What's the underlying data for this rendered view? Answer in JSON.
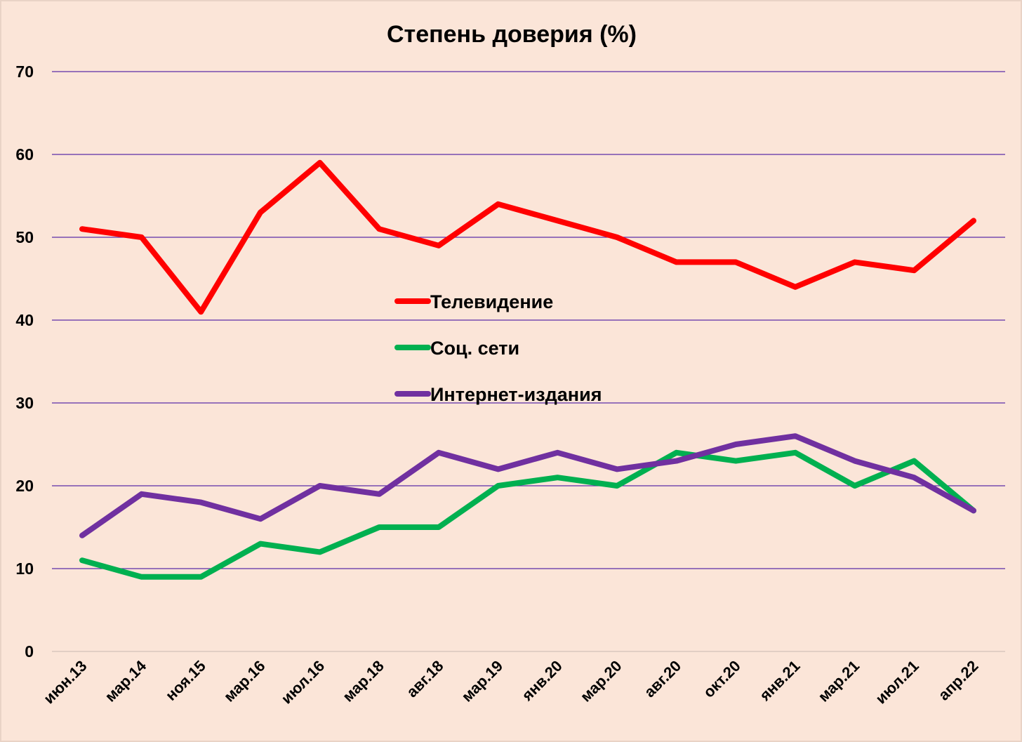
{
  "chart_data": {
    "type": "line",
    "title": "Степень доверия (%)",
    "xlabel": "",
    "ylabel": "",
    "ylim": [
      0,
      70
    ],
    "yticks": [
      0,
      10,
      20,
      30,
      40,
      50,
      60,
      70
    ],
    "grid": true,
    "legend_position": "center",
    "categories": [
      "июн.13",
      "мар.14",
      "ноя.15",
      "мар.16",
      "июл.16",
      "мар.18",
      "авг.18",
      "мар.19",
      "янв.20",
      "мар.20",
      "авг.20",
      "окт.20",
      "янв.21",
      "мар.21",
      "июл.21",
      "апр.22"
    ],
    "series": [
      {
        "name": "Телевидение",
        "color": "#ff0000",
        "values": [
          51,
          50,
          41,
          53,
          59,
          51,
          49,
          54,
          52,
          50,
          47,
          47,
          44,
          47,
          46,
          52
        ]
      },
      {
        "name": "Соц. сети",
        "color": "#00b050",
        "values": [
          11,
          9,
          9,
          13,
          12,
          15,
          15,
          20,
          21,
          20,
          24,
          23,
          24,
          20,
          23,
          17
        ]
      },
      {
        "name": "Интернет-издания",
        "color": "#7030a0",
        "values": [
          14,
          19,
          18,
          16,
          20,
          19,
          24,
          22,
          24,
          22,
          23,
          25,
          26,
          23,
          21,
          17
        ]
      }
    ]
  },
  "colors": {
    "background": "#fbe5d8",
    "gridline": "#5b2fa8"
  }
}
